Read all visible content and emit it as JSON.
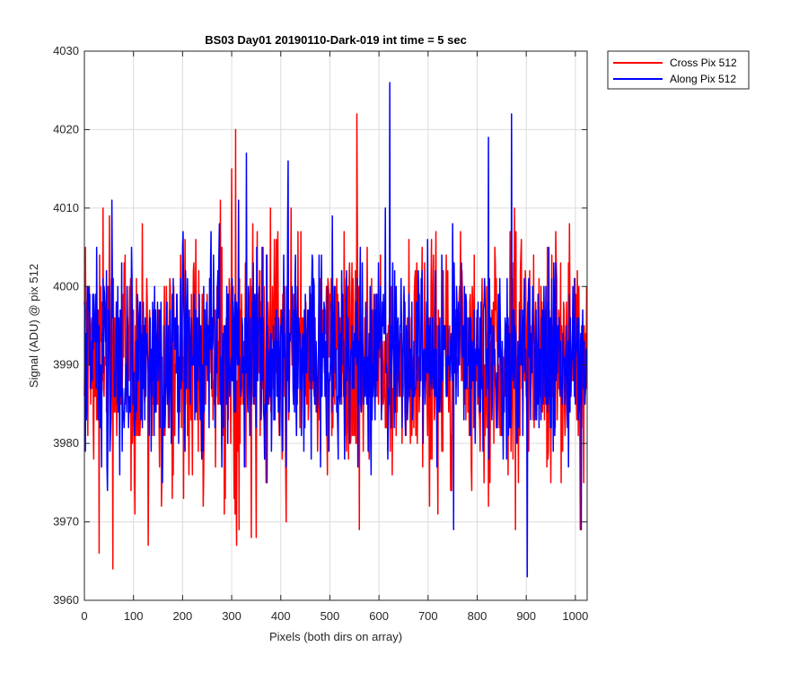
{
  "chart_data": {
    "type": "line",
    "title": "BS03 Day01 20190110-Dark-019 int time = 5 sec",
    "xlabel": "Pixels (both dirs on array)",
    "ylabel": "Signal (ADU) @ pix 512",
    "xlim": [
      0,
      1024
    ],
    "ylim": [
      3960,
      4030
    ],
    "xticks": [
      0,
      100,
      200,
      300,
      400,
      500,
      600,
      700,
      800,
      900,
      1000
    ],
    "yticks": [
      3960,
      3970,
      3980,
      3990,
      4000,
      4010,
      4020,
      4030
    ],
    "grid": true,
    "legend_position": "outside-top-right",
    "series": [
      {
        "name": "Cross Pix 512",
        "color": "#ff0000",
        "n_points": 1024,
        "mean": 3991,
        "std": 7.3,
        "notable_points": [
          {
            "x": 30,
            "y": 3966
          },
          {
            "x": 38,
            "y": 4010
          },
          {
            "x": 58,
            "y": 3964
          },
          {
            "x": 130,
            "y": 3967
          },
          {
            "x": 300,
            "y": 4015
          },
          {
            "x": 308,
            "y": 4020
          },
          {
            "x": 310,
            "y": 3967
          },
          {
            "x": 340,
            "y": 3968
          },
          {
            "x": 350,
            "y": 3968
          },
          {
            "x": 555,
            "y": 4022
          },
          {
            "x": 560,
            "y": 3969
          },
          {
            "x": 720,
            "y": 3971
          },
          {
            "x": 878,
            "y": 3969
          },
          {
            "x": 1010,
            "y": 3969
          }
        ]
      },
      {
        "name": "Along Pix 512",
        "color": "#0000ff",
        "n_points": 1024,
        "mean": 3991,
        "std": 6.5,
        "notable_points": [
          {
            "x": 330,
            "y": 4017
          },
          {
            "x": 415,
            "y": 4016
          },
          {
            "x": 622,
            "y": 4026
          },
          {
            "x": 752,
            "y": 3969
          },
          {
            "x": 823,
            "y": 4019
          },
          {
            "x": 870,
            "y": 4022
          },
          {
            "x": 902,
            "y": 3963
          },
          {
            "x": 1012,
            "y": 3969
          }
        ]
      }
    ]
  }
}
